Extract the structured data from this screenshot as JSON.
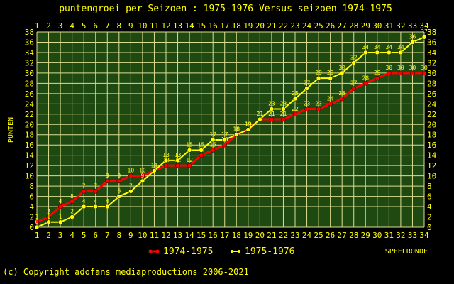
{
  "chart_data": {
    "type": "line",
    "title": "puntengroei per Seizoen : 1975-1976 Versus seizoen 1974-1975",
    "ylabel": "PUNTEN",
    "xlabel": "SPEELRONDE",
    "xlim": [
      1,
      34
    ],
    "ylim": [
      0,
      38
    ],
    "y_ticks": [
      0,
      2,
      4,
      6,
      8,
      10,
      12,
      14,
      16,
      18,
      20,
      22,
      24,
      26,
      28,
      30,
      32,
      34,
      36,
      38
    ],
    "x": [
      1,
      2,
      3,
      4,
      5,
      6,
      7,
      8,
      9,
      10,
      11,
      12,
      13,
      14,
      15,
      16,
      17,
      18,
      19,
      20,
      21,
      22,
      23,
      24,
      25,
      26,
      27,
      28,
      29,
      30,
      31,
      32,
      33,
      34
    ],
    "grid": true,
    "legend_position": "bottom",
    "series": [
      {
        "name": "1974-1975",
        "color": "#ff0000",
        "values": [
          1,
          2,
          4,
          5,
          7,
          7,
          9,
          9,
          10,
          10,
          11,
          12,
          12,
          12,
          14,
          15,
          16,
          18,
          19,
          21,
          21,
          21,
          22,
          23,
          23,
          24,
          25,
          27,
          28,
          29,
          30,
          30,
          30,
          30
        ]
      },
      {
        "name": "1975-1976",
        "color": "#ffff00",
        "values": [
          0,
          1,
          1,
          2,
          4,
          4,
          4,
          6,
          7,
          9,
          11,
          13,
          13,
          15,
          15,
          17,
          17,
          18,
          19,
          21,
          23,
          23,
          25,
          27,
          29,
          29,
          30,
          32,
          34,
          34,
          34,
          34,
          36,
          37
        ]
      }
    ]
  },
  "footer": "(c) Copyright adofans mediaproductions 2006-2021",
  "colors": {
    "background": "#000000",
    "plot_background": "#1e4a12",
    "grid": "#dcdc90",
    "text": "#ffff00"
  }
}
